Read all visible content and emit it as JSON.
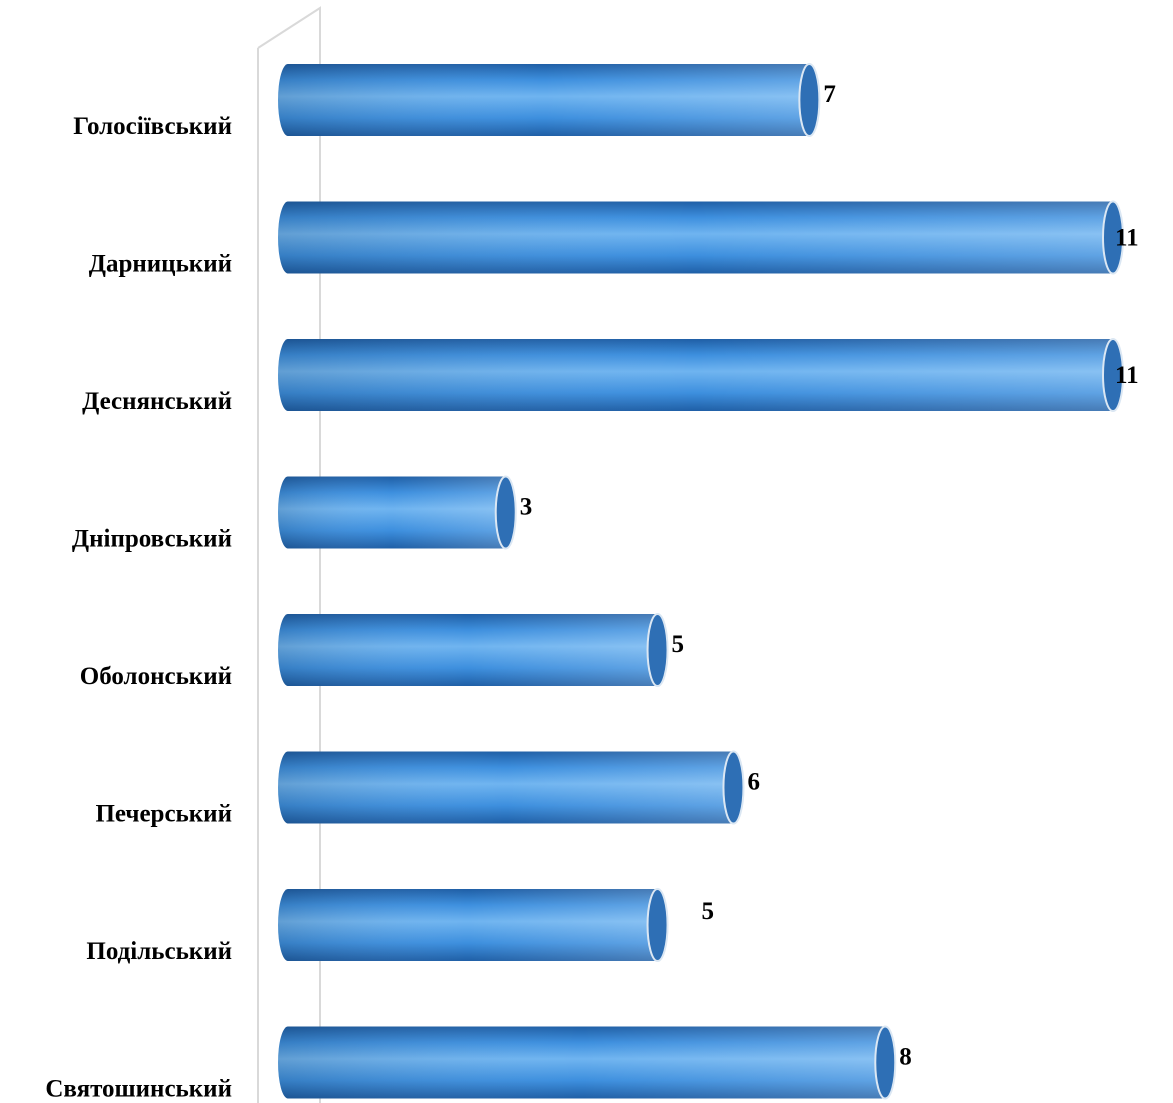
{
  "chart_data": {
    "type": "bar",
    "orientation": "horizontal",
    "categories": [
      "Голосіївський",
      "Дарницький",
      "Деснянський",
      "Дніпровський",
      "Оболонський",
      "Печерський",
      "Подільський",
      "Святошинський"
    ],
    "values": [
      7,
      11,
      11,
      3,
      5,
      6,
      5,
      8
    ],
    "value_labels": [
      "7",
      "11",
      "11",
      "3",
      "5",
      "6",
      "5",
      "8"
    ],
    "title": "",
    "xlabel": "",
    "ylabel": "",
    "xlim": [
      0,
      11
    ],
    "grid": false,
    "legend": "none",
    "bar_style": "3d-cylinder",
    "colors": {
      "bar_light": "#6fb4f0",
      "bar_mid": "#3d8fde",
      "bar_dark": "#1f5fa6",
      "cap": "#2e6fb5",
      "rim": "#dbe7f3",
      "axis_wall": "#d9d9d9"
    }
  }
}
